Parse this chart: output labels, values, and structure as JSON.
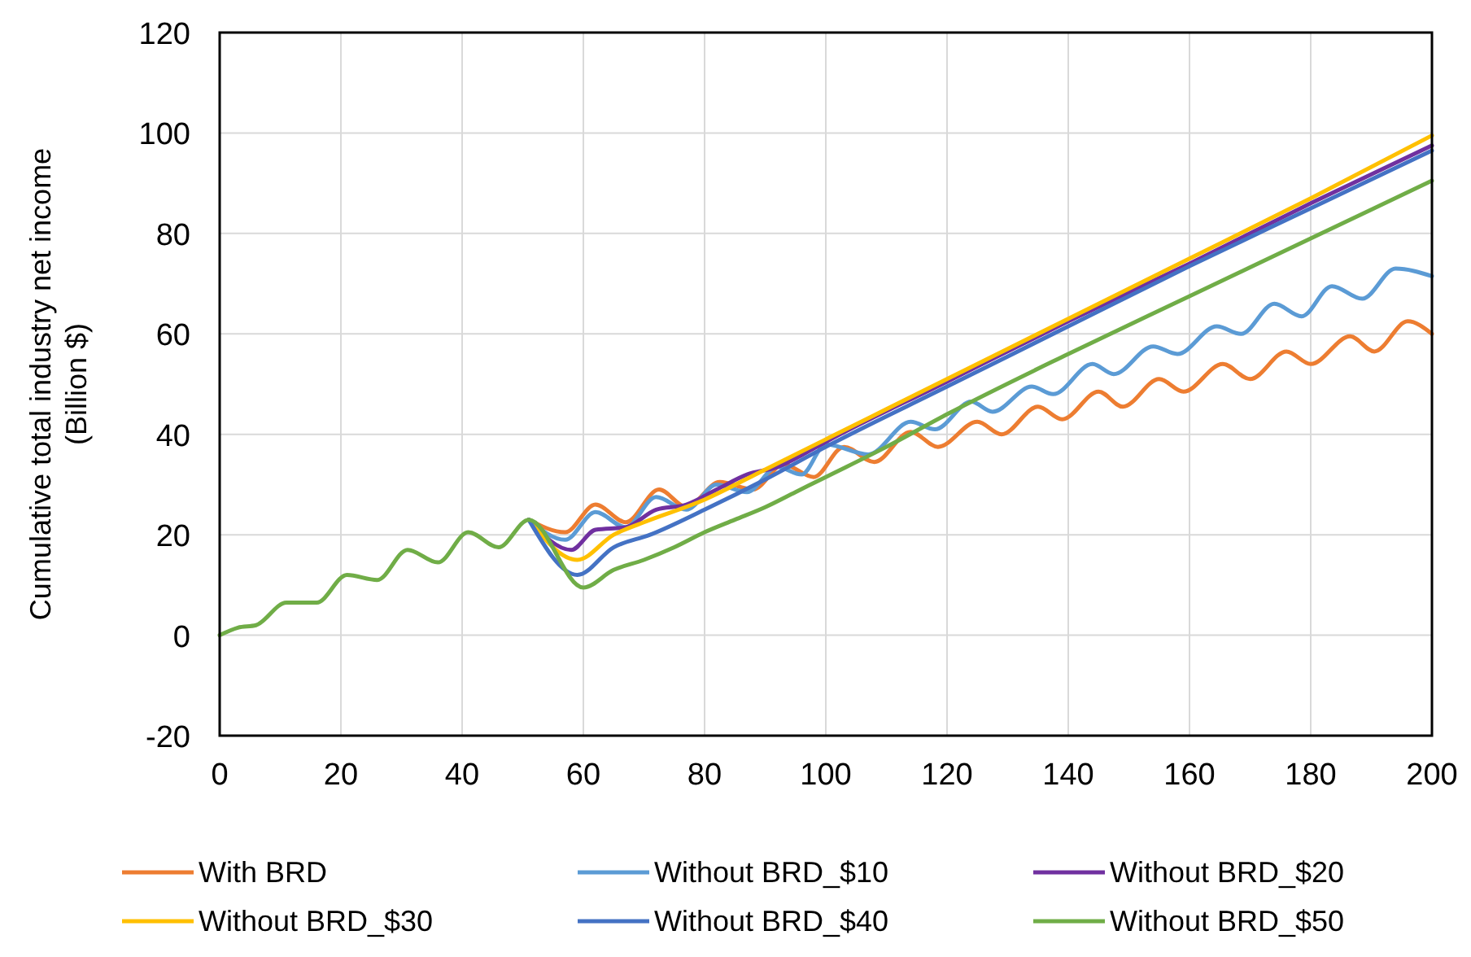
{
  "chart_data": {
    "type": "line",
    "ylabel": "Cumulative total industry net income\n(Billion $)",
    "xlim": [
      0,
      200
    ],
    "xticks": [
      0,
      20,
      40,
      60,
      80,
      100,
      120,
      140,
      160,
      180,
      200
    ],
    "ylim": [
      -20,
      120
    ],
    "yticks": [
      -20,
      0,
      20,
      40,
      60,
      80,
      100,
      120
    ],
    "grid": true,
    "legend": "bottom",
    "marker": "none",
    "line_style": "solid",
    "series": [
      {
        "name": "With BRD",
        "color": "#ed7d31",
        "x": [
          51,
          57,
          62,
          67,
          72.5,
          77,
          82.5,
          88,
          93,
          98,
          103,
          108,
          114,
          118.5,
          125,
          129,
          135,
          139,
          145,
          149,
          155,
          159,
          165.5,
          170,
          176,
          180,
          186.5,
          190.5,
          196,
          200
        ],
        "values": [
          23,
          20.5,
          26,
          22.5,
          29,
          25.5,
          30.5,
          29,
          34,
          31.5,
          37.5,
          34.5,
          40.5,
          37.5,
          42.5,
          40,
          45.5,
          43,
          48.5,
          45.5,
          51,
          48.5,
          54,
          51,
          56.5,
          54,
          59.5,
          56.5,
          62.5,
          60
        ]
      },
      {
        "name": "Without BRD_$10",
        "color": "#5b9bd5",
        "x": [
          51,
          57,
          62,
          67,
          72,
          77,
          82,
          87,
          92,
          96,
          100,
          107,
          114,
          118,
          124,
          127.5,
          134,
          137.5,
          144,
          147.5,
          154,
          158,
          164.5,
          168.5,
          174,
          178.5,
          183.5,
          188.5,
          194,
          200
        ],
        "values": [
          23,
          19,
          24.5,
          21.5,
          27.5,
          25,
          30,
          28.5,
          33.5,
          32,
          38,
          36,
          42.5,
          41,
          46.5,
          44.5,
          49.5,
          48,
          54,
          52,
          57.5,
          56,
          61.5,
          60,
          66,
          63.5,
          69.5,
          67,
          73,
          71.5
        ]
      },
      {
        "name": "Without BRD_$20",
        "color": "#7030a0",
        "x": [
          51,
          58,
          62,
          67,
          72,
          77,
          82,
          87,
          92,
          97,
          100,
          120,
          140,
          160,
          180,
          200
        ],
        "values": [
          23,
          17,
          21,
          21.5,
          25,
          26,
          29,
          32,
          33.5,
          36.5,
          38.5,
          50.5,
          62.5,
          74,
          86,
          97.5
        ]
      },
      {
        "name": "Without BRD_$30",
        "color": "#ffc000",
        "x": [
          51,
          59,
          65,
          70,
          80,
          90,
          100,
          120,
          140,
          160,
          180,
          200
        ],
        "values": [
          23,
          15,
          20,
          22.5,
          27,
          33,
          39,
          51,
          63,
          75,
          87,
          99.5
        ]
      },
      {
        "name": "Without BRD_$40",
        "color": "#4472c4",
        "x": [
          51,
          59,
          65,
          71,
          80,
          90,
          100,
          120,
          140,
          160,
          180,
          200
        ],
        "values": [
          23,
          12,
          17.5,
          20,
          25,
          31,
          37.5,
          49.5,
          61.5,
          73.5,
          85,
          96.5
        ]
      },
      {
        "name": "Without BRD_$50",
        "color": "#70ad47",
        "x": [
          0,
          3,
          6,
          11,
          16,
          21,
          26,
          31,
          36,
          41,
          46,
          51,
          60,
          65,
          70,
          75,
          80,
          85,
          90,
          95,
          100,
          110,
          120,
          140,
          160,
          180,
          200
        ],
        "values": [
          0,
          1.5,
          2,
          6.5,
          6.5,
          12,
          11,
          17,
          14.5,
          20.5,
          17.5,
          23,
          9.5,
          13,
          15,
          17.5,
          20.5,
          23,
          25.5,
          28.5,
          31.5,
          37.5,
          44,
          56,
          67.5,
          79,
          90.5
        ]
      }
    ]
  }
}
